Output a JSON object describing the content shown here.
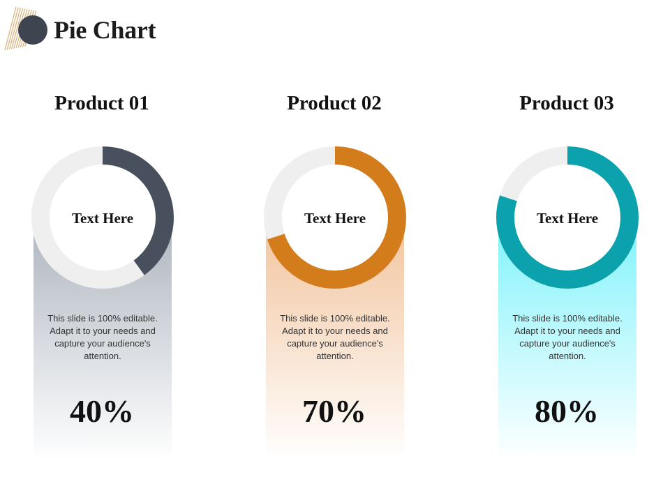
{
  "page": {
    "title": "Pie Chart"
  },
  "colors": {
    "track": "#efefef",
    "product_1": "#47505c",
    "product_2": "#d27c1c",
    "product_3": "#0ba1ad",
    "logo_dot": "#3e4450",
    "logo_lines": "#d8b077"
  },
  "chart_data": {
    "type": "pie",
    "style": "donut",
    "items": [
      {
        "title": "Product 01",
        "label": "Text Here",
        "value": 40,
        "value_text": "40%",
        "description": "This slide is 100% editable. Adapt it to your needs and capture your audience's attention."
      },
      {
        "title": "Product 02",
        "label": "Text Here",
        "value": 70,
        "value_text": "70%",
        "description": "This slide is 100% editable. Adapt it to your needs and capture your audience's attention."
      },
      {
        "title": "Product 03",
        "label": "Text Here",
        "value": 80,
        "value_text": "80%",
        "description": "This slide is 100% editable. Adapt it to your needs and capture your audience's attention."
      }
    ]
  }
}
